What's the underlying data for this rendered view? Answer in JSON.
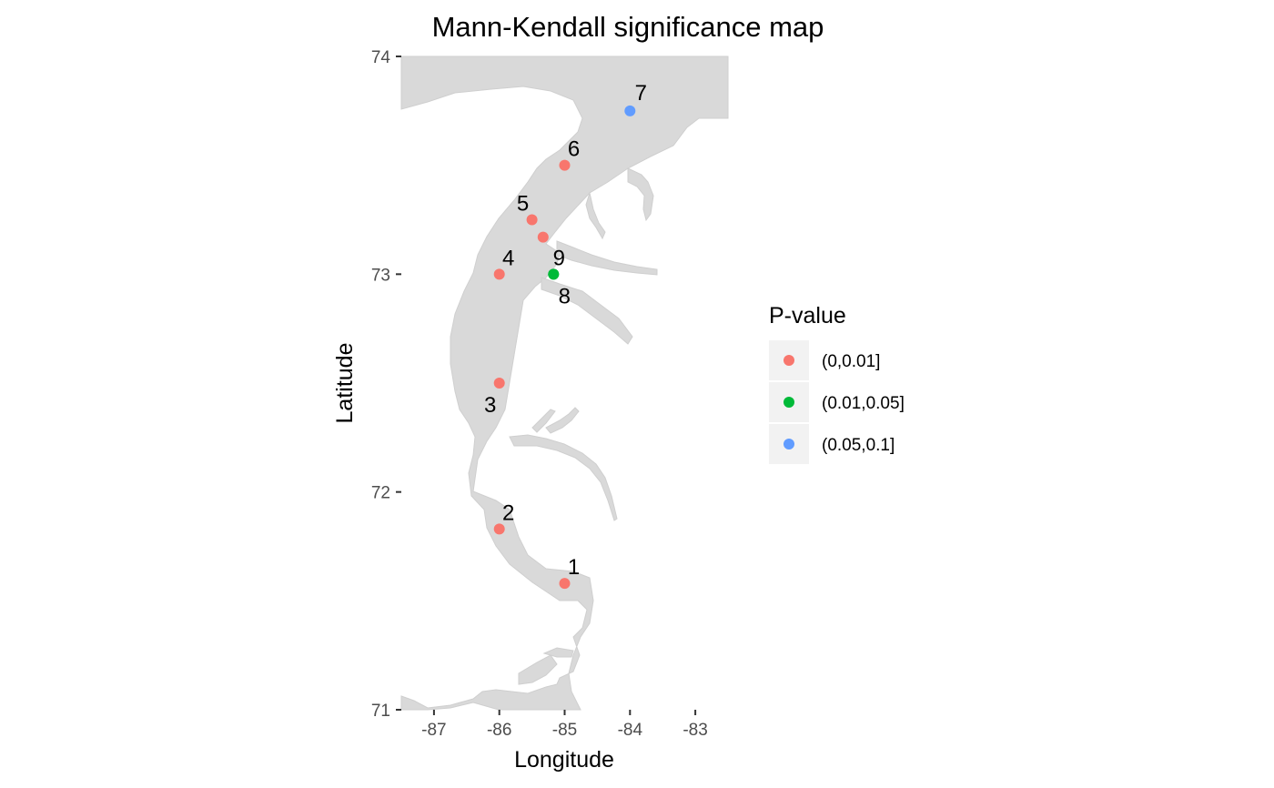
{
  "chart_data": {
    "type": "scatter",
    "title": "Mann-Kendall significance map",
    "xlabel": "Longitude",
    "ylabel": "Latitude",
    "xlim": [
      -87.5,
      -82.5
    ],
    "ylim": [
      71,
      74
    ],
    "x_ticks": [
      -87,
      -86,
      -85,
      -84,
      -83
    ],
    "y_ticks": [
      71,
      72,
      73,
      74
    ],
    "x_tick_labels": [
      "-87",
      "-86",
      "-85",
      "-84",
      "-83"
    ],
    "y_tick_labels": [
      "71",
      "72",
      "73",
      "74"
    ],
    "grid": false,
    "land_color": "#d9d9d9",
    "legend": {
      "title": "P-value",
      "placement": "right",
      "entries": [
        {
          "label": "(0,0.01]",
          "color": "#f8766d"
        },
        {
          "label": "(0.01,0.05]",
          "color": "#00ba38"
        },
        {
          "label": "(0.05,0.1]",
          "color": "#619cff"
        }
      ]
    },
    "points": [
      {
        "label": "1",
        "lon": -85.0,
        "lat": 71.58,
        "class": 0
      },
      {
        "label": "2",
        "lon": -86.0,
        "lat": 71.83,
        "class": 0
      },
      {
        "label": "3",
        "lon": -86.0,
        "lat": 72.5,
        "class": 0
      },
      {
        "label": "4",
        "lon": -86.0,
        "lat": 73.0,
        "class": 0
      },
      {
        "label": "5",
        "lon": -85.5,
        "lat": 73.25,
        "class": 0
      },
      {
        "label": "",
        "lon": -85.33,
        "lat": 73.17,
        "class": 0
      },
      {
        "label": "6",
        "lon": -85.0,
        "lat": 73.5,
        "class": 0
      },
      {
        "label": "7",
        "lon": -84.0,
        "lat": 73.75,
        "class": 2
      },
      {
        "label": "8",
        "lon": -85.17,
        "lat": 73.0,
        "class": 1
      },
      {
        "label": "9",
        "lon": -85.17,
        "lat": 73.0,
        "class": 1
      }
    ]
  }
}
